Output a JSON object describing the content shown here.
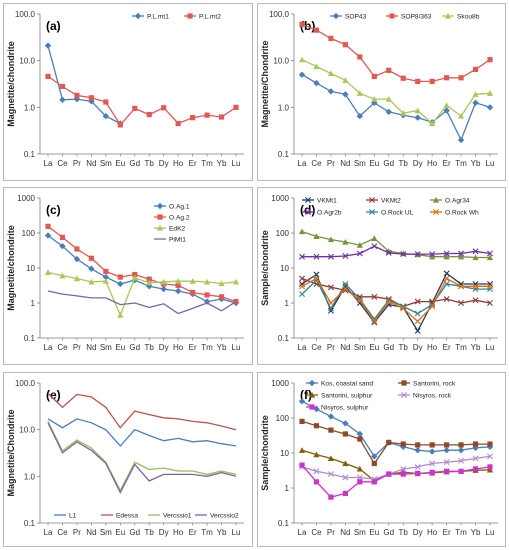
{
  "chart_data": [
    {
      "type": "line",
      "panel_label": "(a)",
      "ylabel": "Magnetite/chondrite",
      "log_y": true,
      "ylim": [
        0.1,
        100
      ],
      "yticks": [
        "100.0",
        "10.0",
        "1.0",
        "0.1"
      ],
      "categories": [
        "La",
        "Ce",
        "Pr",
        "Nd",
        "Sm",
        "Eu",
        "Gd",
        "Tb",
        "Dy",
        "Ho",
        "Er",
        "Tm",
        "Yb",
        "Lu"
      ],
      "legend_position": "top-right",
      "series": [
        {
          "name": "P.L.mt1",
          "color": "#4a7ebb",
          "marker": "diamond",
          "values": [
            21,
            1.45,
            1.5,
            1.35,
            0.65,
            0.45,
            null,
            null,
            null,
            null,
            null,
            null,
            null,
            null
          ]
        },
        {
          "name": "P.L.mt2",
          "color": "#e05a55",
          "marker": "square",
          "values": [
            4.6,
            2.8,
            1.8,
            1.6,
            1.3,
            0.42,
            0.95,
            0.7,
            0.98,
            0.45,
            0.6,
            0.68,
            0.62,
            1.0
          ]
        }
      ]
    },
    {
      "type": "line",
      "panel_label": "(b)",
      "ylabel": "Magnetite/Chondrite",
      "log_y": true,
      "ylim": [
        0.1,
        100
      ],
      "yticks": [
        "100.0",
        "10.0",
        "1.0",
        "0.1"
      ],
      "categories": [
        "La",
        "Ce",
        "Pr",
        "Nd",
        "Sm",
        "Eu",
        "Gd",
        "Tb",
        "Dy",
        "Ho",
        "Er",
        "Tm",
        "Yb",
        "Lu"
      ],
      "legend_position": "top",
      "series": [
        {
          "name": "SOP43",
          "color": "#4a7ebb",
          "marker": "diamond",
          "values": [
            5.0,
            3.3,
            2.2,
            1.9,
            0.65,
            1.25,
            0.8,
            0.68,
            0.6,
            0.48,
            0.85,
            0.2,
            1.25,
            1.0
          ]
        },
        {
          "name": "SOP8/363",
          "color": "#e05a55",
          "marker": "square",
          "values": [
            60,
            45,
            30,
            22,
            12,
            4.6,
            6.2,
            4.2,
            3.6,
            3.6,
            4.3,
            4.3,
            6.5,
            10.5
          ]
        },
        {
          "name": "Skou8b",
          "color": "#a9c957",
          "marker": "triangle",
          "values": [
            10.5,
            7.5,
            5.3,
            3.8,
            2.0,
            1.5,
            1.5,
            0.75,
            0.85,
            0.45,
            1.1,
            0.65,
            1.9,
            2.0
          ]
        }
      ]
    },
    {
      "type": "line",
      "panel_label": "(c)",
      "ylabel": "Magnetite/chondrite",
      "log_y": true,
      "ylim": [
        0.1,
        1000
      ],
      "yticks": [
        "1000",
        "100",
        "10",
        "1",
        "0.1"
      ],
      "categories": [
        "La",
        "Ce",
        "Pr",
        "Nd",
        "Sm",
        "Eu",
        "Gd",
        "Tb",
        "Dy",
        "Ho",
        "Er",
        "Tm",
        "Yb",
        "Lu"
      ],
      "legend_position": "top-right",
      "series": [
        {
          "name": "O.Ag.1",
          "color": "#4a7ebb",
          "marker": "diamond",
          "values": [
            85,
            42,
            18,
            9.5,
            5.5,
            3.5,
            4.5,
            3.0,
            2.5,
            2.2,
            1.8,
            1.1,
            1.3,
            1.0
          ]
        },
        {
          "name": "O.Ag.2",
          "color": "#e05a55",
          "marker": "square",
          "values": [
            155,
            75,
            35,
            19,
            8.0,
            5.5,
            6.5,
            4.8,
            3.5,
            3.2,
            2.0,
            1.7,
            1.5,
            1.1
          ]
        },
        {
          "name": "EdK2",
          "color": "#a9c957",
          "marker": "triangle",
          "values": [
            7.5,
            6.0,
            5.0,
            4.0,
            4.2,
            0.45,
            5.2,
            3.8,
            4.0,
            4.2,
            4.2,
            4.0,
            3.6,
            4.0
          ]
        },
        {
          "name": "PiMt1",
          "color": "#8064a2",
          "marker": "none",
          "values": [
            2.2,
            1.8,
            1.6,
            1.4,
            1.4,
            0.9,
            1.0,
            0.75,
            0.95,
            0.5,
            0.7,
            1.0,
            0.6,
            1.1
          ]
        }
      ]
    },
    {
      "type": "line",
      "panel_label": "(d)",
      "ylabel": "Sample/chondrite",
      "log_y": true,
      "ylim": [
        0.1,
        1000
      ],
      "yticks": [
        "1000",
        "100",
        "10",
        "1",
        "0.1"
      ],
      "categories": [
        "La",
        "Ce",
        "Pr",
        "Nd",
        "Sm",
        "Eu",
        "Gd",
        "Tb",
        "Dy",
        "Ho",
        "Er",
        "Tm",
        "Yb",
        "Lu"
      ],
      "legend_position": "top",
      "series": [
        {
          "name": "VKMt1",
          "color": "#1f3864",
          "marker": "x",
          "values": [
            3.5,
            6.5,
            0.6,
            3.0,
            1.0,
            0.28,
            0.9,
            0.75,
            0.16,
            1.0,
            7.0,
            3.5,
            3.5,
            3.5
          ]
        },
        {
          "name": "VKMt2",
          "color": "#953735",
          "marker": "x",
          "values": [
            5.0,
            3.5,
            2.8,
            2.3,
            1.5,
            1.5,
            1.3,
            0.8,
            1.1,
            1.1,
            1.3,
            1.0,
            1.2,
            1.0
          ]
        },
        {
          "name": "O.Agr34",
          "color": "#77933c",
          "marker": "triangle",
          "values": [
            110,
            80,
            65,
            55,
            45,
            70,
            30,
            26,
            24,
            21,
            21,
            21,
            20,
            20
          ]
        },
        {
          "name": "O.Agr2b",
          "color": "#7030a0",
          "marker": "x",
          "values": [
            21,
            21,
            21,
            22,
            26,
            42,
            27,
            25,
            25,
            25,
            26,
            26,
            30,
            26
          ]
        },
        {
          "name": "O.Rock UL",
          "color": "#31849b",
          "marker": "x",
          "values": [
            1.8,
            4.5,
            0.7,
            3.5,
            1.3,
            0.35,
            1.2,
            0.8,
            0.5,
            0.9,
            3.5,
            3.0,
            2.5,
            2.5
          ]
        },
        {
          "name": "O.Rock Wh",
          "color": "#e36c09",
          "marker": "x",
          "values": [
            3.0,
            5.0,
            1.0,
            2.5,
            1.2,
            0.3,
            1.1,
            0.7,
            0.3,
            0.8,
            5.0,
            3.0,
            3.0,
            3.0
          ]
        }
      ]
    },
    {
      "type": "line",
      "panel_label": "(e)",
      "ylabel": "Magnetite/Chondrite",
      "log_y": true,
      "ylim": [
        0.1,
        100
      ],
      "yticks": [
        "100.0",
        "10.0",
        "1.0",
        "0.1"
      ],
      "categories": [
        "La",
        "Ce",
        "Pr",
        "Nd",
        "Sm",
        "Eu",
        "Gd",
        "Tb",
        "Dy",
        "Ho",
        "Er",
        "Tm",
        "Yb",
        "Lu"
      ],
      "legend_position": "bottom",
      "series": [
        {
          "name": "L1",
          "color": "#4a7ebb",
          "marker": "none",
          "values": [
            17,
            11,
            17,
            14,
            10,
            4.5,
            10,
            7.5,
            5.8,
            6.5,
            5.5,
            5.8,
            5.0,
            4.5
          ]
        },
        {
          "name": "Edessa",
          "color": "#c0504d",
          "marker": "none",
          "values": [
            60,
            30,
            57,
            50,
            30,
            11,
            25,
            21,
            18,
            17,
            15,
            14,
            12,
            10
          ]
        },
        {
          "name": "Vercssio1",
          "color": "#9bbb59",
          "marker": "none",
          "values": [
            15,
            3.5,
            6.0,
            4.0,
            2.0,
            0.5,
            2.0,
            1.4,
            1.5,
            1.3,
            1.3,
            1.1,
            1.3,
            1.1
          ]
        },
        {
          "name": "Vercssio2",
          "color": "#8064a2",
          "marker": "none",
          "values": [
            14,
            3.2,
            5.5,
            3.6,
            1.9,
            0.45,
            1.8,
            0.8,
            1.1,
            1.1,
            1.1,
            1.0,
            1.2,
            1.0
          ]
        }
      ]
    },
    {
      "type": "line",
      "panel_label": "(f)",
      "ylabel": "Sample/chondrite",
      "log_y": true,
      "ylim": [
        0.1,
        1000
      ],
      "yticks": [
        "1000",
        "100",
        "10",
        "1",
        "0.1"
      ],
      "categories": [
        "La",
        "Ce",
        "Pr",
        "Nd",
        "Sm",
        "Eu",
        "Gd",
        "Tb",
        "Dy",
        "Ho",
        "Er",
        "Tm",
        "Yb",
        "Lu"
      ],
      "legend_position": "top",
      "series": [
        {
          "name": "Kos, coastal sand",
          "color": "#4a7ebb",
          "marker": "diamond",
          "values": [
            300,
            180,
            110,
            70,
            35,
            8.0,
            20,
            15,
            12,
            11,
            12,
            12,
            14,
            15
          ]
        },
        {
          "name": "Santorini, rock",
          "color": "#8c4a2a",
          "marker": "square",
          "values": [
            80,
            60,
            45,
            35,
            25,
            5.0,
            20,
            18,
            17,
            17,
            17,
            17,
            18,
            18
          ]
        },
        {
          "name": "Santorini, sulphur",
          "color": "#7f6000",
          "marker": "triangle",
          "values": [
            12,
            9,
            7,
            5,
            3.5,
            1.6,
            2.5,
            2.8,
            2.6,
            2.7,
            2.9,
            3.0,
            3.2,
            3.3
          ]
        },
        {
          "name": "Nisyros, rock",
          "color": "#b08cd0",
          "marker": "x",
          "values": [
            4.0,
            3.0,
            2.5,
            2.0,
            2.0,
            1.8,
            2.5,
            3.5,
            4.0,
            5.0,
            5.5,
            6.0,
            7.0,
            8.0
          ]
        },
        {
          "name": "Nisyros, sulphur",
          "color": "#cc33cc",
          "marker": "square",
          "values": [
            4.5,
            1.5,
            0.55,
            0.7,
            1.5,
            1.5,
            2.5,
            2.5,
            2.6,
            2.8,
            3.0,
            3.0,
            3.5,
            4.0
          ]
        }
      ]
    }
  ]
}
